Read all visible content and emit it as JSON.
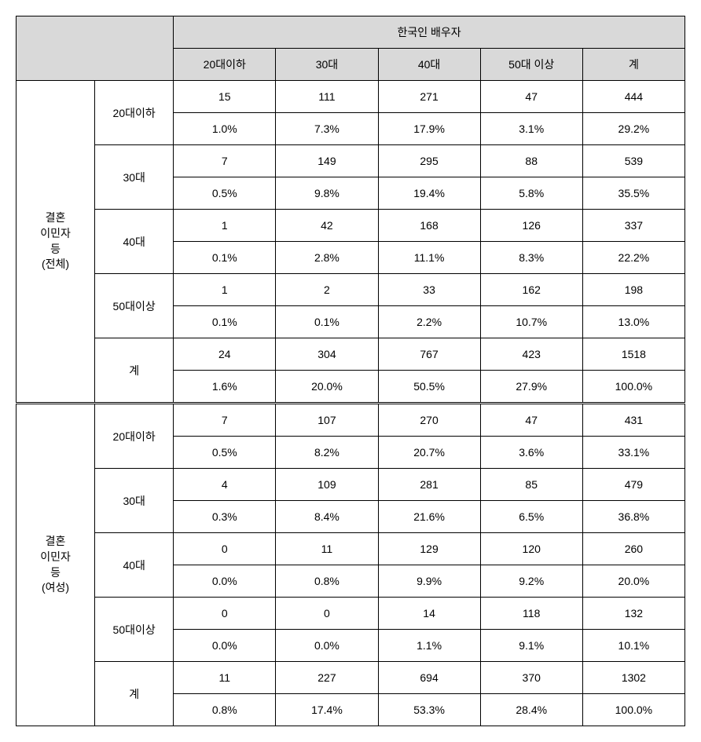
{
  "table": {
    "header": {
      "top_label": "한국인 배우자",
      "columns": [
        "20대이하",
        "30대",
        "40대",
        "50대 이상",
        "계"
      ]
    },
    "sections": [
      {
        "label": "결혼\n이민자\n등\n(전체)",
        "groups": [
          {
            "sublabel": "20대이하",
            "values": [
              "15",
              "111",
              "271",
              "47",
              "444"
            ],
            "percents": [
              "1.0%",
              "7.3%",
              "17.9%",
              "3.1%",
              "29.2%"
            ]
          },
          {
            "sublabel": "30대",
            "values": [
              "7",
              "149",
              "295",
              "88",
              "539"
            ],
            "percents": [
              "0.5%",
              "9.8%",
              "19.4%",
              "5.8%",
              "35.5%"
            ]
          },
          {
            "sublabel": "40대",
            "values": [
              "1",
              "42",
              "168",
              "126",
              "337"
            ],
            "percents": [
              "0.1%",
              "2.8%",
              "11.1%",
              "8.3%",
              "22.2%"
            ]
          },
          {
            "sublabel": "50대이상",
            "values": [
              "1",
              "2",
              "33",
              "162",
              "198"
            ],
            "percents": [
              "0.1%",
              "0.1%",
              "2.2%",
              "10.7%",
              "13.0%"
            ]
          },
          {
            "sublabel": "계",
            "values": [
              "24",
              "304",
              "767",
              "423",
              "1518"
            ],
            "percents": [
              "1.6%",
              "20.0%",
              "50.5%",
              "27.9%",
              "100.0%"
            ]
          }
        ]
      },
      {
        "label": "결혼\n이민자\n등\n(여성)",
        "groups": [
          {
            "sublabel": "20대이하",
            "values": [
              "7",
              "107",
              "270",
              "47",
              "431"
            ],
            "percents": [
              "0.5%",
              "8.2%",
              "20.7%",
              "3.6%",
              "33.1%"
            ]
          },
          {
            "sublabel": "30대",
            "values": [
              "4",
              "109",
              "281",
              "85",
              "479"
            ],
            "percents": [
              "0.3%",
              "8.4%",
              "21.6%",
              "6.5%",
              "36.8%"
            ]
          },
          {
            "sublabel": "40대",
            "values": [
              "0",
              "11",
              "129",
              "120",
              "260"
            ],
            "percents": [
              "0.0%",
              "0.8%",
              "9.9%",
              "9.2%",
              "20.0%"
            ]
          },
          {
            "sublabel": "50대이상",
            "values": [
              "0",
              "0",
              "14",
              "118",
              "132"
            ],
            "percents": [
              "0.0%",
              "0.0%",
              "1.1%",
              "9.1%",
              "10.1%"
            ]
          },
          {
            "sublabel": "계",
            "values": [
              "11",
              "227",
              "694",
              "370",
              "1302"
            ],
            "percents": [
              "0.8%",
              "17.4%",
              "53.3%",
              "28.4%",
              "100.0%"
            ]
          }
        ]
      }
    ]
  }
}
